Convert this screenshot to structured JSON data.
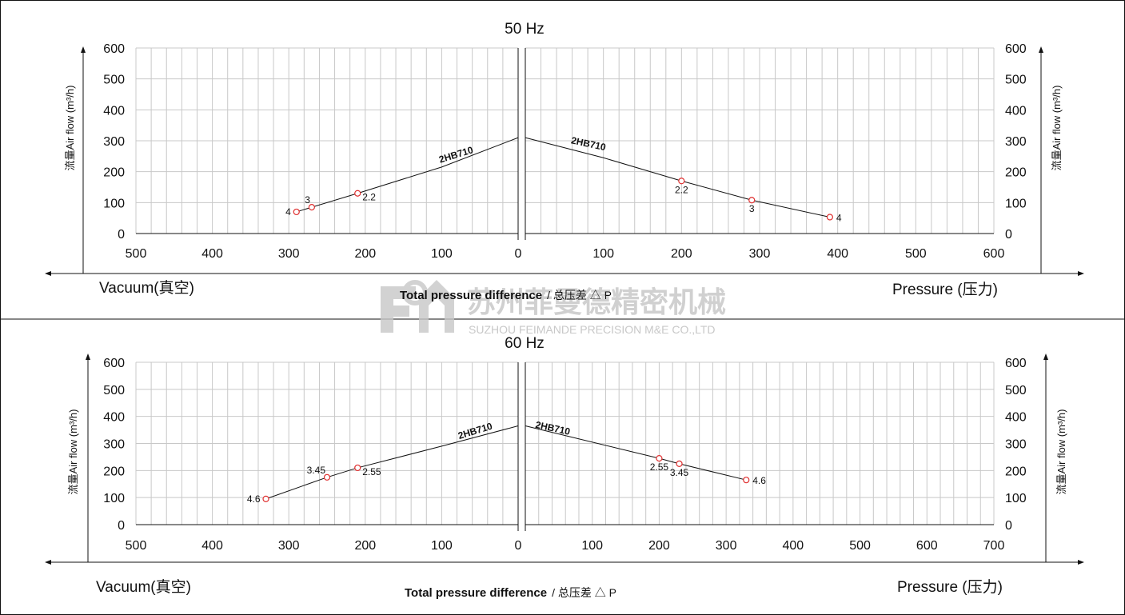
{
  "colors": {
    "grid": "#c8c8c8",
    "axis": "#111111",
    "curve": "#111111",
    "marker": "#e03030",
    "watermark": "#c8c8c8"
  },
  "watermark": {
    "cn": "苏州菲曼德精密机械",
    "en": "SUZHOU FEIMANDE PRECISION M&E CO.,LTD",
    "logo_icon": "feimande-logo-icon"
  },
  "chart_data": [
    {
      "type": "line",
      "title": "50 Hz",
      "ylabel": "流量Air flow (m³/h)",
      "xlabel": "Total pressure difference",
      "xlabel_cn": "/ 总压差 △ P",
      "left_label": "Vacuum(真空)",
      "right_label": "Pressure (压力)",
      "ylim": [
        0,
        600
      ],
      "yticks": [
        "600",
        "500",
        "400",
        "300",
        "200",
        "100",
        "0"
      ],
      "vacuum": {
        "xlim": [
          500,
          0
        ],
        "xticks": [
          "500",
          "400",
          "300",
          "200",
          "100",
          "0"
        ],
        "series": [
          {
            "name": "2HB710",
            "x": [
              290,
              270,
              210,
              100,
              0
            ],
            "y": [
              70,
              85,
              130,
              215,
              310
            ],
            "points": [
              {
                "x": 290,
                "y": 70,
                "label": "4"
              },
              {
                "x": 270,
                "y": 85,
                "label": "3"
              },
              {
                "x": 210,
                "y": 130,
                "label": "2.2"
              }
            ]
          }
        ]
      },
      "pressure": {
        "xlim": [
          0,
          600
        ],
        "xticks": [
          "100",
          "200",
          "300",
          "400",
          "500",
          "600"
        ],
        "series": [
          {
            "name": "2HB710",
            "x": [
              0,
              100,
              200,
              290,
              390
            ],
            "y": [
              310,
              245,
              170,
              108,
              53
            ],
            "points": [
              {
                "x": 200,
                "y": 170,
                "label": "2.2"
              },
              {
                "x": 290,
                "y": 108,
                "label": "3"
              },
              {
                "x": 390,
                "y": 53,
                "label": "4"
              }
            ]
          }
        ]
      }
    },
    {
      "type": "line",
      "title": "60 Hz",
      "ylabel": "流量Air flow (m³/h)",
      "xlabel": "Total pressure difference",
      "xlabel_cn": "/ 总压差 △ P",
      "left_label": "Vacuum(真空)",
      "right_label": "Pressure (压力)",
      "ylim": [
        0,
        600
      ],
      "yticks": [
        "600",
        "500",
        "400",
        "300",
        "200",
        "100",
        "0"
      ],
      "vacuum": {
        "xlim": [
          500,
          0
        ],
        "xticks": [
          "500",
          "400",
          "300",
          "200",
          "100",
          "0"
        ],
        "series": [
          {
            "name": "2HB710",
            "x": [
              330,
              250,
              210,
              100,
              0
            ],
            "y": [
              95,
              175,
              210,
              290,
              365
            ],
            "points": [
              {
                "x": 330,
                "y": 95,
                "label": "4.6"
              },
              {
                "x": 250,
                "y": 175,
                "label": "3.45"
              },
              {
                "x": 210,
                "y": 210,
                "label": "2.55"
              }
            ]
          }
        ]
      },
      "pressure": {
        "xlim": [
          0,
          700
        ],
        "xticks": [
          "100",
          "200",
          "300",
          "400",
          "500",
          "600",
          "700"
        ],
        "series": [
          {
            "name": "2HB710",
            "x": [
              0,
              200,
              230,
              330
            ],
            "y": [
              365,
              245,
              225,
              165
            ],
            "points": [
              {
                "x": 200,
                "y": 245,
                "label": "2.55"
              },
              {
                "x": 230,
                "y": 225,
                "label": "3.45"
              },
              {
                "x": 330,
                "y": 165,
                "label": "4.6"
              }
            ]
          }
        ]
      }
    }
  ]
}
